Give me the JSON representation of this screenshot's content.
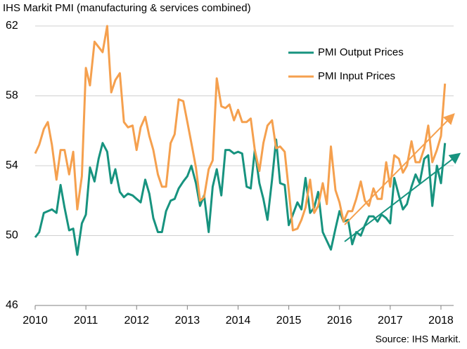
{
  "chart_data": {
    "type": "line",
    "title": "IHS Markit PMI (manufacturing & services combined)",
    "source": "Source: IHS Markit.",
    "x": [
      2010.0,
      2010.08,
      2010.17,
      2010.25,
      2010.33,
      2010.42,
      2010.5,
      2010.58,
      2010.67,
      2010.75,
      2010.83,
      2010.92,
      2011.0,
      2011.08,
      2011.17,
      2011.25,
      2011.33,
      2011.42,
      2011.5,
      2011.58,
      2011.67,
      2011.75,
      2011.83,
      2011.92,
      2012.0,
      2012.08,
      2012.17,
      2012.25,
      2012.33,
      2012.42,
      2012.5,
      2012.58,
      2012.67,
      2012.75,
      2012.83,
      2012.92,
      2013.0,
      2013.08,
      2013.17,
      2013.25,
      2013.33,
      2013.42,
      2013.5,
      2013.58,
      2013.67,
      2013.75,
      2013.83,
      2013.92,
      2014.0,
      2014.08,
      2014.17,
      2014.25,
      2014.33,
      2014.42,
      2014.5,
      2014.58,
      2014.67,
      2014.75,
      2014.83,
      2014.92,
      2015.0,
      2015.08,
      2015.17,
      2015.25,
      2015.33,
      2015.42,
      2015.5,
      2015.58,
      2015.67,
      2015.75,
      2015.83,
      2015.92,
      2016.0,
      2016.08,
      2016.17,
      2016.25,
      2016.33,
      2016.42,
      2016.5,
      2016.58,
      2016.67,
      2016.75,
      2016.83,
      2016.92,
      2017.0,
      2017.08,
      2017.17,
      2017.25,
      2017.33,
      2017.42,
      2017.5,
      2017.58,
      2017.67,
      2017.75,
      2017.83,
      2017.92,
      2018.0,
      2018.08
    ],
    "series": [
      {
        "name": "PMI Output Prices",
        "color": "#17937f",
        "values": [
          49.9,
          50.2,
          51.3,
          51.4,
          51.5,
          51.3,
          52.9,
          51.6,
          50.3,
          50.4,
          48.9,
          50.7,
          51.2,
          53.9,
          53.1,
          54.4,
          55.3,
          54.8,
          53.0,
          53.8,
          52.5,
          52.2,
          52.4,
          52.3,
          52.1,
          51.9,
          53.2,
          52.4,
          51.0,
          50.2,
          50.2,
          51.4,
          52.0,
          52.1,
          52.7,
          53.1,
          53.4,
          54.0,
          53.0,
          51.7,
          52.3,
          50.2,
          52.8,
          53.8,
          52.3,
          54.9,
          54.9,
          54.7,
          54.8,
          54.7,
          52.8,
          52.7,
          54.9,
          53.0,
          52.1,
          50.9,
          53.2,
          55.5,
          53.0,
          52.9,
          50.6,
          51.2,
          51.9,
          51.5,
          53.3,
          51.3,
          51.6,
          52.5,
          50.2,
          49.7,
          49.2,
          50.4,
          51.4,
          50.8,
          50.9,
          49.5,
          50.2,
          50.0,
          50.6,
          51.1,
          51.1,
          50.8,
          51.2,
          51.0,
          50.7,
          53.3,
          52.3,
          51.5,
          51.8,
          52.8,
          53.5,
          53.0,
          54.4,
          54.6,
          51.7,
          54.0,
          53.0,
          55.3
        ]
      },
      {
        "name": "PMI Input Prices",
        "color": "#f5a04e",
        "values": [
          54.7,
          55.2,
          56.1,
          56.5,
          55.2,
          53.2,
          54.9,
          54.9,
          53.5,
          54.8,
          51.5,
          53.4,
          59.6,
          58.6,
          61.1,
          60.8,
          60.5,
          62.0,
          58.2,
          58.9,
          59.3,
          56.5,
          56.2,
          56.3,
          54.9,
          56.2,
          56.8,
          55.7,
          54.9,
          53.5,
          52.8,
          52.8,
          55.3,
          55.8,
          57.8,
          57.7,
          56.5,
          55.3,
          53.9,
          52.0,
          52.2,
          53.8,
          54.3,
          59.0,
          57.4,
          57.3,
          57.5,
          56.6,
          57.2,
          56.5,
          56.5,
          56.7,
          54.9,
          53.7,
          55.3,
          56.3,
          56.6,
          55.0,
          55.1,
          54.8,
          52.6,
          50.3,
          50.4,
          50.9,
          51.6,
          53.2,
          51.3,
          51.7,
          53.0,
          51.8,
          55.1,
          52.6,
          51.9,
          50.8,
          51.4,
          51.4,
          52.1,
          53.1,
          52.0,
          51.7,
          52.7,
          52.1,
          52.1,
          54.2,
          52.8,
          54.6,
          54.4,
          53.6,
          54.0,
          55.4,
          54.2,
          54.2,
          55.0,
          56.3,
          54.2,
          54.9,
          55.7,
          58.7
        ]
      }
    ],
    "xlim": [
      2010,
      2018.25
    ],
    "xticks": [
      2010,
      2011,
      2012,
      2013,
      2014,
      2015,
      2016,
      2017,
      2018
    ],
    "ylim": [
      46,
      62
    ],
    "yticks": [
      46,
      50,
      54,
      58,
      62
    ],
    "grid": true
  }
}
